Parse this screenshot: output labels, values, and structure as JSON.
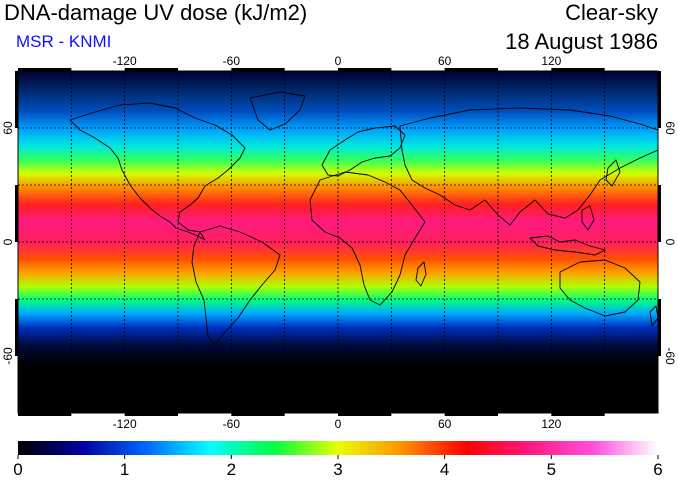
{
  "header": {
    "title": "DNA-damage UV dose (kJ/m2)",
    "source": "MSR - KNMI",
    "mode": "Clear-sky",
    "date": "18 August 1986"
  },
  "map": {
    "lon_ticks": [
      "-120",
      "-60",
      "0",
      "60",
      "120"
    ],
    "lat_ticks": [
      "60",
      "0",
      "-60"
    ],
    "lon_values": [
      -120,
      -60,
      0,
      60,
      120
    ],
    "lat_values": [
      60,
      0,
      -60
    ],
    "lon_range": [
      -180,
      180
    ],
    "lat_range": [
      -90,
      90
    ],
    "gridlines": true
  },
  "colorbar": {
    "min": 0,
    "max": 6,
    "labels": [
      "0",
      "1",
      "2",
      "3",
      "4",
      "5",
      "6"
    ],
    "colors": [
      "#000000",
      "#0000a0",
      "#0066ff",
      "#00ffff",
      "#00ff40",
      "#e8ff00",
      "#ff9000",
      "#ff0000",
      "#ff1a80",
      "#ff50e0",
      "#ffffff"
    ]
  }
}
